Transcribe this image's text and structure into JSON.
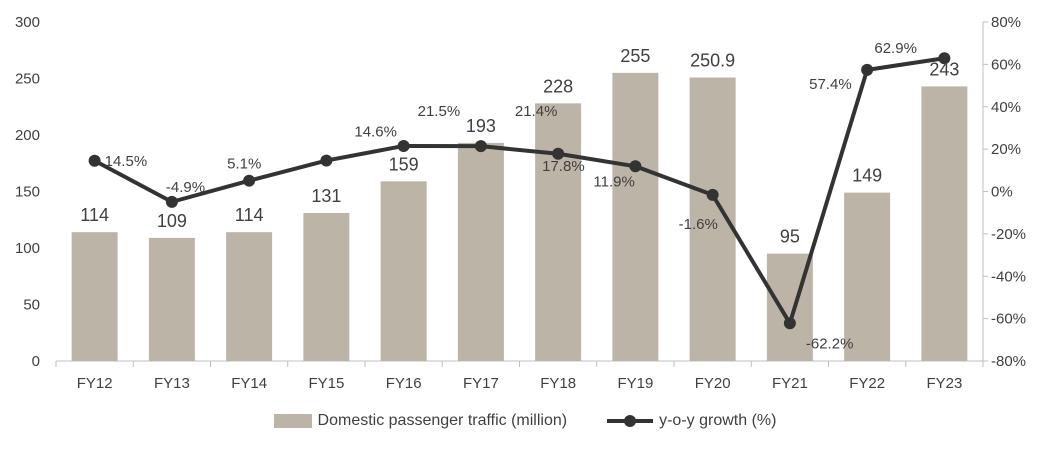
{
  "chart_data": {
    "type": "bar",
    "categories": [
      "FY12",
      "FY13",
      "FY14",
      "FY15",
      "FY16",
      "FY17",
      "FY18",
      "FY19",
      "FY20",
      "FY21",
      "FY22",
      "FY23"
    ],
    "series": [
      {
        "name": "Domestic passenger traffic (million)",
        "type": "bar",
        "axis": "left",
        "values": [
          114,
          109,
          114,
          131,
          159,
          193,
          228,
          255,
          250.9,
          95,
          149,
          243
        ],
        "labels": [
          "114",
          "109",
          "114",
          "131",
          "159",
          "193",
          "228",
          "255",
          "250.9",
          "95",
          "149",
          "243"
        ]
      },
      {
        "name": "y-o-y growth (%)",
        "type": "line",
        "axis": "right",
        "values": [
          14.5,
          -4.9,
          5.1,
          14.6,
          21.5,
          21.4,
          17.8,
          11.9,
          -1.6,
          -62.2,
          57.4,
          62.9
        ],
        "labels": [
          "14.5%",
          "-4.9%",
          "5.1%",
          "14.6%",
          "21.5%",
          "21.4%",
          "17.8%",
          "11.9%",
          "-1.6%",
          "-62.2%",
          "57.4%",
          "62.9%"
        ]
      }
    ],
    "y_left": {
      "min": 0,
      "max": 300,
      "ticks": [
        "0",
        "50",
        "100",
        "150",
        "200",
        "250",
        "300"
      ]
    },
    "y_right": {
      "min": -80,
      "max": 80,
      "ticks": [
        "-80%",
        "-60%",
        "-40%",
        "-20%",
        "0%",
        "20%",
        "40%",
        "60%",
        "80%"
      ]
    },
    "legend_position": "bottom",
    "grid": false,
    "colors": {
      "bar": "#bcb4a7",
      "line": "#333333",
      "text": "#404040",
      "axis": "#bfbfbf"
    }
  }
}
